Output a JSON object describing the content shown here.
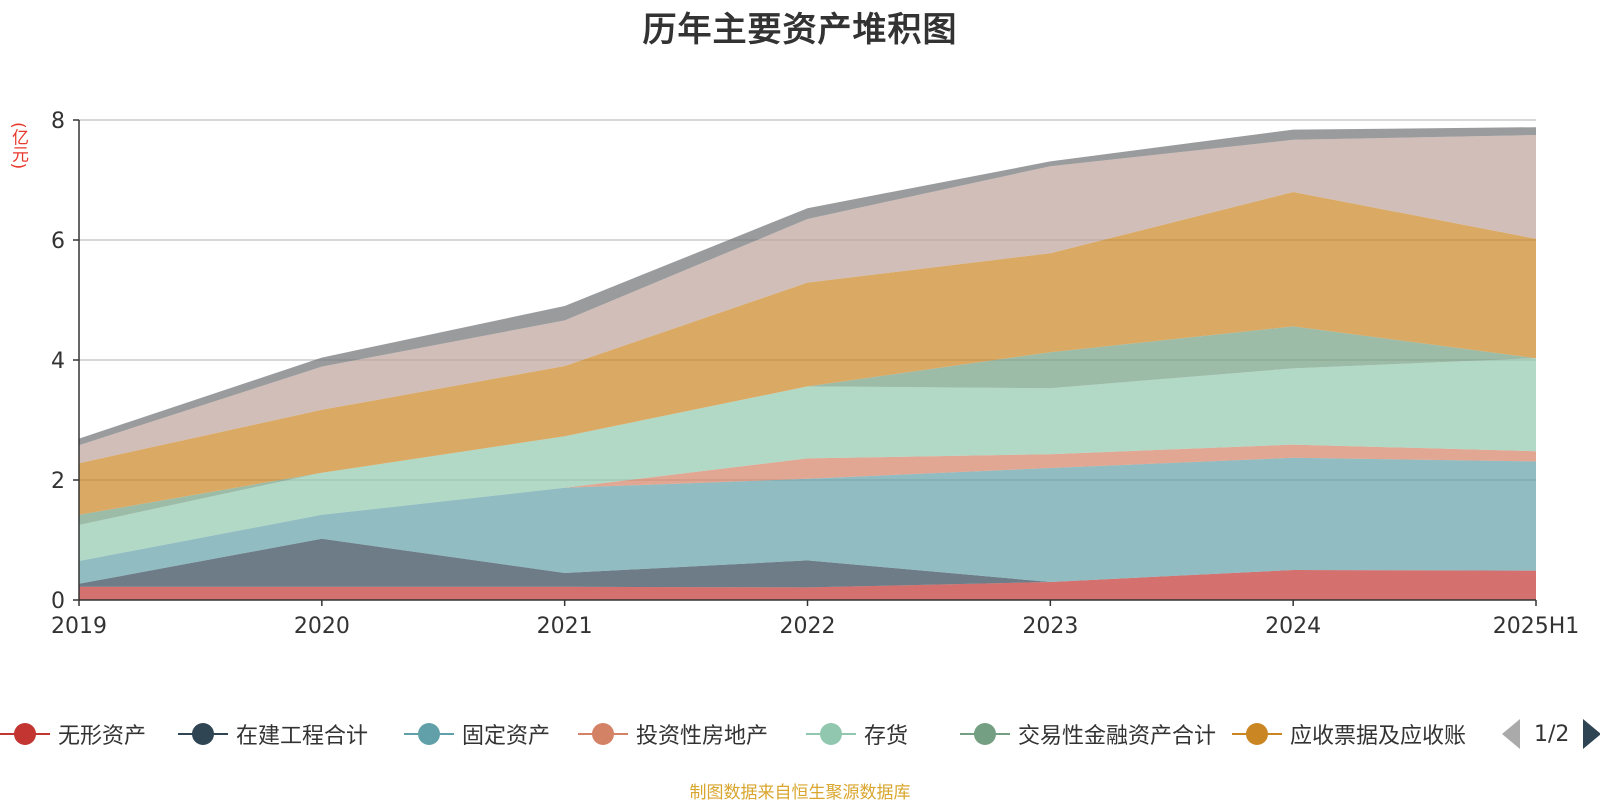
{
  "title": "历年主要资产堆积图",
  "unit_label": "(亿元)",
  "source_note": "制图数据来自恒生聚源数据库",
  "pager": {
    "text": "1/2"
  },
  "legend": [
    {
      "name": "无形资产",
      "color": "#c23531"
    },
    {
      "name": "在建工程合计",
      "color": "#2f4554"
    },
    {
      "name": "固定资产",
      "color": "#61a0a8"
    },
    {
      "name": "投资性房地产",
      "color": "#d48265"
    },
    {
      "name": "存货",
      "color": "#91c7ae"
    },
    {
      "name": "交易性金融资产合计",
      "color": "#749f83"
    },
    {
      "name": "应收票据及应收账",
      "color": "#ca8622"
    }
  ],
  "chart_data": {
    "type": "area",
    "stacked": true,
    "x": [
      "2019",
      "2020",
      "2021",
      "2022",
      "2023",
      "2024",
      "2025H1"
    ],
    "ylim": [
      0,
      8
    ],
    "yticks": [
      0,
      2,
      4,
      6,
      8
    ],
    "grid": true,
    "legend_position": "bottom",
    "series": [
      {
        "name": "无形资产",
        "color": "#c23531",
        "values": [
          0.22,
          0.22,
          0.22,
          0.21,
          0.3,
          0.5,
          0.49
        ]
      },
      {
        "name": "在建工程合计",
        "color": "#2f4554",
        "values": [
          0.05,
          0.8,
          0.23,
          0.45,
          0.0,
          0.0,
          0.0
        ]
      },
      {
        "name": "固定资产",
        "color": "#61a0a8",
        "values": [
          0.38,
          0.4,
          1.42,
          1.36,
          1.9,
          1.87,
          1.82
        ]
      },
      {
        "name": "投资性房地产",
        "color": "#d48265",
        "values": [
          0.0,
          0.0,
          0.0,
          0.34,
          0.23,
          0.22,
          0.17
        ]
      },
      {
        "name": "存货",
        "color": "#91c7ae",
        "values": [
          0.6,
          0.7,
          0.86,
          1.2,
          1.1,
          1.27,
          1.55
        ]
      },
      {
        "name": "交易性金融资产合计",
        "color": "#749f83",
        "values": [
          0.17,
          0.0,
          0.0,
          0.0,
          0.6,
          0.7,
          0.0
        ]
      },
      {
        "name": "应收票据及应收账",
        "color": "#ca8622",
        "values": [
          0.86,
          1.05,
          1.17,
          1.73,
          1.65,
          2.24,
          1.99
        ]
      },
      {
        "name": "",
        "color": "#bda29a",
        "values": [
          0.3,
          0.72,
          0.76,
          1.06,
          1.45,
          0.87,
          1.73
        ]
      },
      {
        "name": "",
        "color": "#6e7074",
        "values": [
          0.11,
          0.15,
          0.24,
          0.18,
          0.08,
          0.17,
          0.13
        ]
      }
    ]
  }
}
